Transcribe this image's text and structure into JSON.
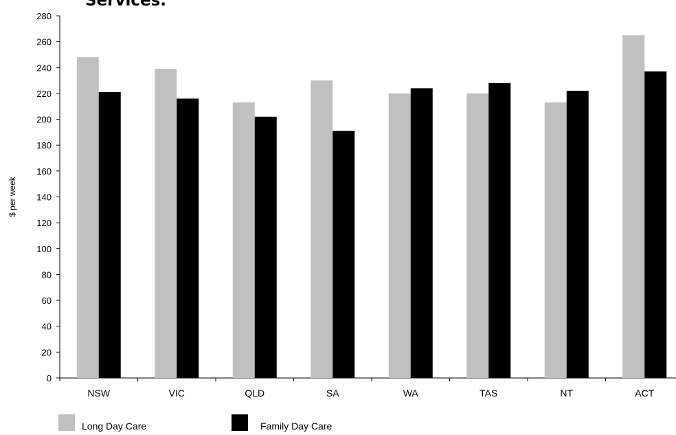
{
  "chart_data": {
    "type": "bar",
    "title": "Services.",
    "ylabel": "$ per week",
    "xlabel": "",
    "ylim": [
      0,
      280
    ],
    "yticks": [
      0,
      20,
      40,
      60,
      80,
      100,
      120,
      140,
      160,
      180,
      200,
      220,
      240,
      260,
      280
    ],
    "categories": [
      "NSW",
      "VIC",
      "QLD",
      "SA",
      "WA",
      "TAS",
      "NT",
      "ACT"
    ],
    "series": [
      {
        "name": "Long Day Care",
        "color": "#c0c0c0",
        "values": [
          248,
          239,
          213,
          230,
          220,
          220,
          213,
          265
        ]
      },
      {
        "name": "Family Day Care",
        "color": "#000000",
        "values": [
          221,
          216,
          202,
          191,
          224,
          228,
          222,
          237
        ]
      }
    ],
    "grid": false,
    "legend_position": "bottom-left"
  }
}
